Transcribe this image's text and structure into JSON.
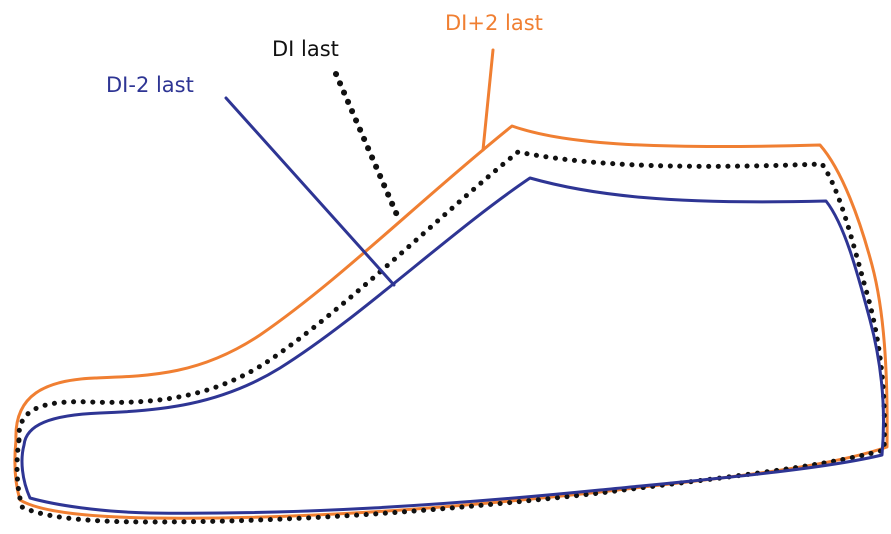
{
  "labels": {
    "di_plus_2": "DI+2 last",
    "di": "DI last",
    "di_minus_2": "DI-2 last"
  },
  "colors": {
    "di_plus_2": "#f07f32",
    "di": "#111111",
    "di_minus_2": "#2e3594"
  }
}
